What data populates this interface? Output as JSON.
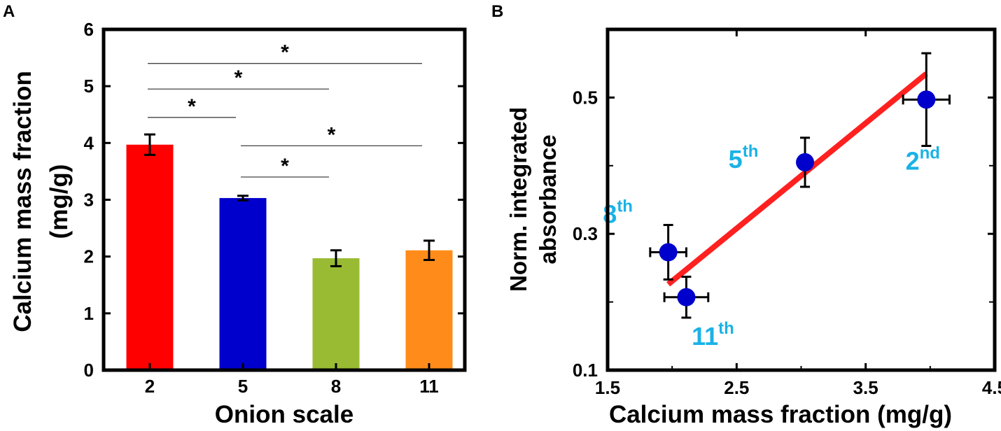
{
  "colors": {
    "bar_2": "#ff0000",
    "bar_5": "#0000cc",
    "bar_8": "#99bb33",
    "bar_11": "#ff8c1a",
    "point": "#0000cc",
    "fit_line": "#ff2020",
    "point_label": "#1ab2e6",
    "axis": "#000000",
    "sig_line": "#444444"
  },
  "chart_data": [
    {
      "panel": "A",
      "type": "bar",
      "title": "",
      "xlabel": "Onion scale",
      "ylabel_line1": "Calcium mass fraction",
      "ylabel_line2": "(mg/g)",
      "categories": [
        "2",
        "5",
        "8",
        "11"
      ],
      "values": [
        3.97,
        3.03,
        1.97,
        2.11
      ],
      "errors": [
        0.18,
        0.04,
        0.14,
        0.17
      ],
      "ylim": [
        0,
        6
      ],
      "yticks": [
        0,
        1,
        2,
        3,
        4,
        5,
        6
      ],
      "significance": [
        {
          "from": "2",
          "to": "11",
          "y": 5.4,
          "label": "*"
        },
        {
          "from": "2",
          "to": "8",
          "y": 4.95,
          "label": "*"
        },
        {
          "from": "2",
          "to": "5",
          "y": 4.45,
          "label": "*"
        },
        {
          "from": "5",
          "to": "11",
          "y": 3.95,
          "label": "*"
        },
        {
          "from": "5",
          "to": "8",
          "y": 3.4,
          "label": "*"
        }
      ]
    },
    {
      "panel": "B",
      "type": "scatter",
      "title": "",
      "xlabel": "Calcium mass fraction (mg/g)",
      "ylabel_line1": "Norm. integrated",
      "ylabel_line2": "absorbance",
      "xlim": [
        1.5,
        4.5
      ],
      "ylim": [
        0.1,
        0.6
      ],
      "xticks": [
        "1.5",
        "2.5",
        "3.5",
        "4.5"
      ],
      "yticks": [
        "0.1",
        "0.3",
        "0.5"
      ],
      "points": [
        {
          "label": "2",
          "sup": "nd",
          "x": 3.97,
          "y": 0.497,
          "xerr": 0.18,
          "yerr": 0.068
        },
        {
          "label": "5",
          "sup": "th",
          "x": 3.03,
          "y": 0.405,
          "xerr": 0.04,
          "yerr": 0.036
        },
        {
          "label": "8",
          "sup": "th",
          "x": 1.97,
          "y": 0.273,
          "xerr": 0.14,
          "yerr": 0.04
        },
        {
          "label": "11",
          "sup": "th",
          "x": 2.11,
          "y": 0.207,
          "xerr": 0.17,
          "yerr": 0.03
        }
      ],
      "fit_line": {
        "x": [
          1.97,
          3.97
        ],
        "y": [
          0.226,
          0.535
        ]
      }
    }
  ]
}
